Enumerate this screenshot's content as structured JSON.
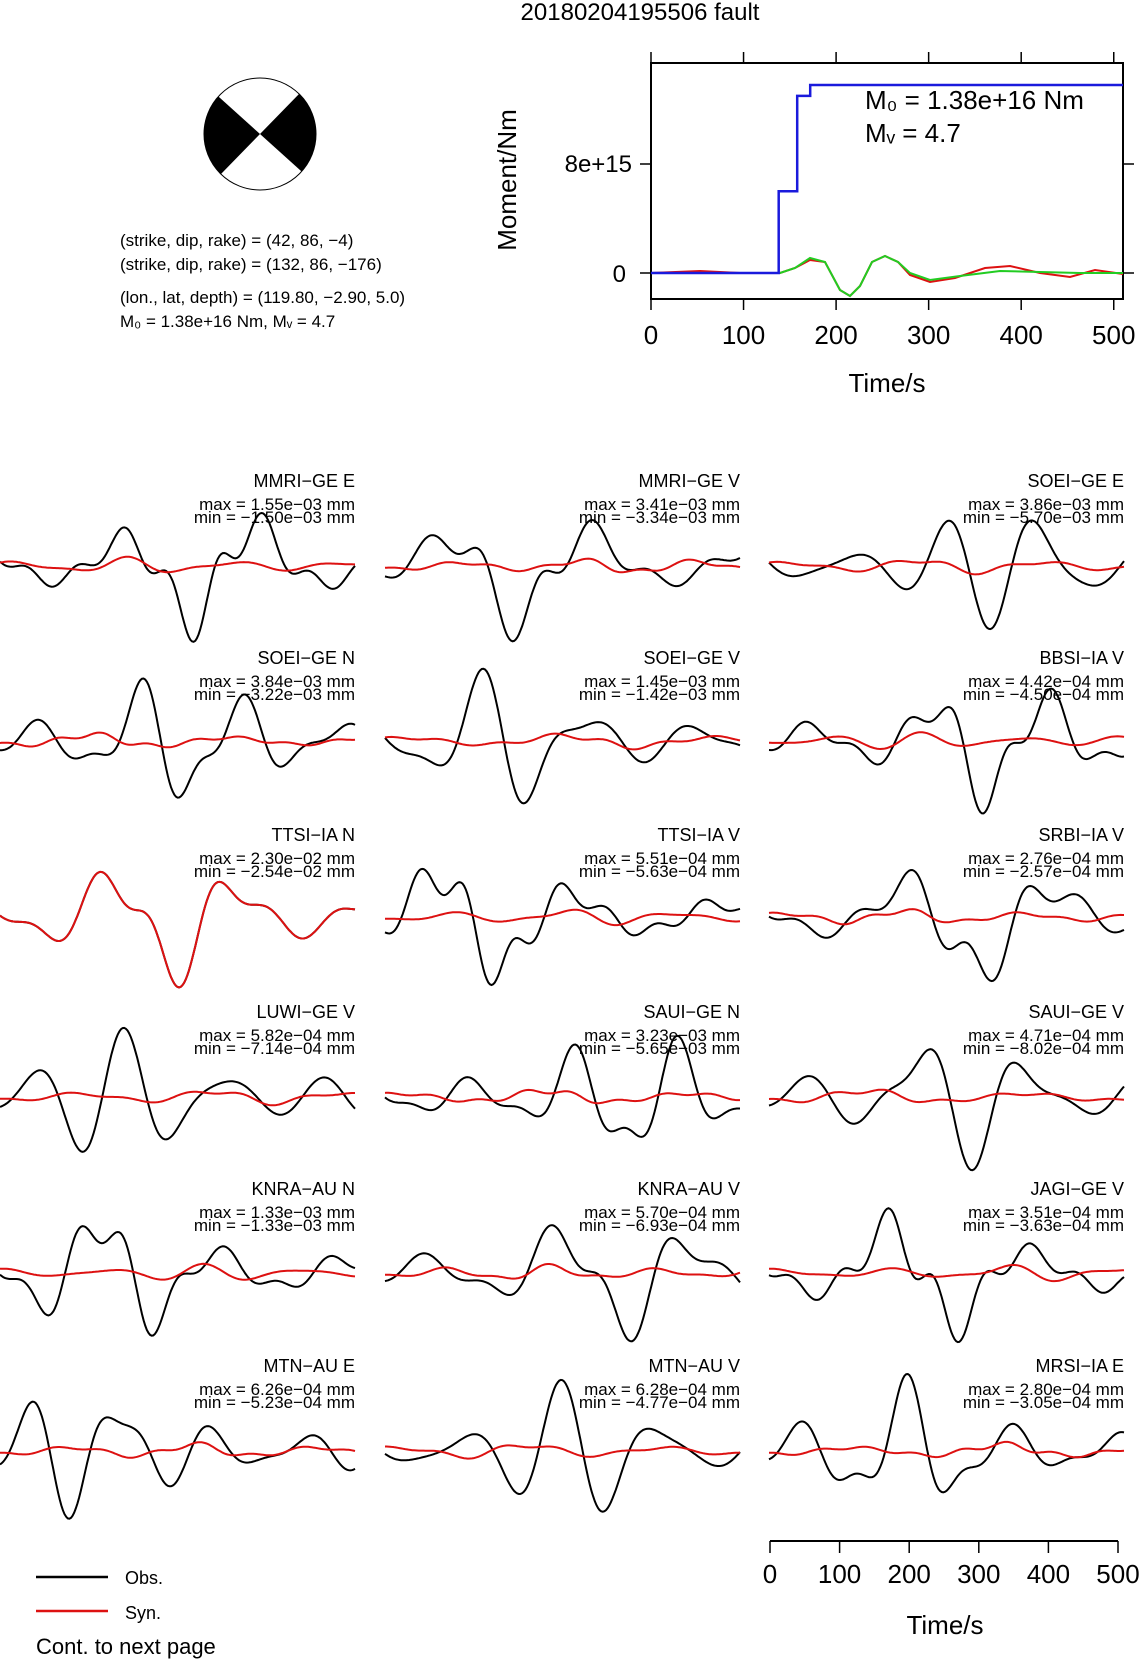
{
  "title": "20180204195506 fault",
  "mechanism": {
    "line1": "(strike, dip, rake) = (42, 86, −4)",
    "line2": "(strike, dip, rake) = (132, 86, −176)",
    "line3": "(lon., lat, depth) = (119.80, −2.90, 5.0)",
    "line4": "M₀ = 1.38e+16 Nm, Mᵥ = 4.7"
  },
  "stf_panel": {
    "ylabel": "Moment/Nm",
    "xlabel": "Time/s",
    "m0_text": "M₀ = 1.38e+16 Nm",
    "mw_text": "Mᵥ = 4.7",
    "xticks": [
      "0",
      "100",
      "200",
      "300",
      "400",
      "500"
    ],
    "yticks": [
      "0",
      "8e+15"
    ]
  },
  "waveforms": [
    {
      "station": "MMRI−GE E",
      "max": "max = 1.55e−03 mm",
      "min": "min = −1.50e−03 mm"
    },
    {
      "station": "MMRI−GE V",
      "max": "max = 3.41e−03 mm",
      "min": "min = −3.34e−03 mm"
    },
    {
      "station": "SOEI−GE E",
      "max": "max = 3.86e−03 mm",
      "min": "min = −5.70e−03 mm"
    },
    {
      "station": "SOEI−GE N",
      "max": "max = 3.84e−03 mm",
      "min": "min = −3.22e−03 mm"
    },
    {
      "station": "SOEI−GE V",
      "max": "max = 1.45e−03 mm",
      "min": "min = −1.42e−03 mm"
    },
    {
      "station": "BBSI−IA V",
      "max": "max = 4.42e−04 mm",
      "min": "min = −4.50e−04 mm"
    },
    {
      "station": "TTSI−IA N",
      "max": "max = 2.30e−02 mm",
      "min": "min = −2.54e−02 mm"
    },
    {
      "station": "TTSI−IA V",
      "max": "max = 5.51e−04 mm",
      "min": "min = −5.63e−04 mm"
    },
    {
      "station": "SRBI−IA V",
      "max": "max = 2.76e−04 mm",
      "min": "min = −2.57e−04 mm"
    },
    {
      "station": "LUWI−GE V",
      "max": "max = 5.82e−04 mm",
      "min": "min = −7.14e−04 mm"
    },
    {
      "station": "SAUI−GE N",
      "max": "max = 3.23e−03 mm",
      "min": "min = −5.65e−03 mm"
    },
    {
      "station": "SAUI−GE V",
      "max": "max = 4.71e−04 mm",
      "min": "min = −8.02e−04 mm"
    },
    {
      "station": "KNRA−AU N",
      "max": "max = 1.33e−03 mm",
      "min": "min = −1.33e−03 mm"
    },
    {
      "station": "KNRA−AU V",
      "max": "max = 5.70e−04 mm",
      "min": "min = −6.93e−04 mm"
    },
    {
      "station": "JAGI−GE V",
      "max": "max = 3.51e−04 mm",
      "min": "min = −3.63e−04 mm"
    },
    {
      "station": "MTN−AU E",
      "max": "max = 6.26e−04 mm",
      "min": "min = −5.23e−04 mm"
    },
    {
      "station": "MTN−AU V",
      "max": "max = 6.28e−04 mm",
      "min": "min = −4.77e−04 mm"
    },
    {
      "station": "MRSI−IA E",
      "max": "max = 2.80e−04 mm",
      "min": "min = −3.05e−04 mm"
    }
  ],
  "bottom_axis": {
    "xlabel": "Time/s",
    "xticks": [
      "0",
      "100",
      "200",
      "300",
      "400",
      "500"
    ]
  },
  "legend": {
    "obs": "Obs.",
    "syn": "Syn."
  },
  "footer": "Cont. to next page",
  "colors": {
    "observed": "#000000",
    "synthetic": "#dd1111",
    "moment": "#1a1adc",
    "stf_green": "#22cc22"
  },
  "chart_data": {
    "type": "line",
    "title": "20180204195506 fault",
    "xlabel": "Time/s",
    "ylabel": "Moment/Nm",
    "xlim": [
      0,
      510
    ],
    "series": [
      {
        "x": [
          0,
          138,
          138,
          158,
          158,
          172,
          172,
          180,
          180,
          510
        ],
        "values": [
          0,
          0,
          6000000000000000.0,
          6000000000000000.0,
          1.3e+16,
          1.3e+16,
          1.38e+16,
          1.38e+16,
          1.38e+16,
          1.38e+16
        ]
      }
    ]
  }
}
